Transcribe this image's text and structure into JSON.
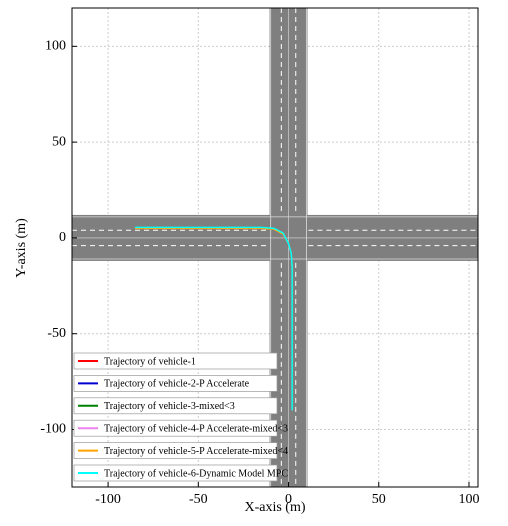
{
  "chart_data": {
    "type": "line",
    "xlabel": "X-axis (m)",
    "ylabel": "Y-axis (m)",
    "xlim": [
      -120,
      105
    ],
    "ylim": [
      -130,
      120
    ],
    "xticks": [
      -100,
      -50,
      0,
      50,
      100
    ],
    "yticks": [
      -100,
      -50,
      0,
      50,
      100
    ],
    "grid": true,
    "legend": "lower left",
    "series": [
      {
        "name": "Trajectory of vehicle-1",
        "color": "#ff0000",
        "x": [
          -85,
          -40,
          -15,
          -8,
          -3,
          0,
          1.5,
          2,
          2,
          2
        ],
        "values": [
          5,
          5,
          5,
          4.5,
          2,
          -3,
          -8,
          -15,
          -50,
          -90
        ]
      },
      {
        "name": "Trajectory of vehicle-2-P Accelerate",
        "color": "#0000cc",
        "x": [
          -85,
          -40,
          -15,
          -8,
          -3,
          0,
          1.5,
          2,
          2,
          2
        ],
        "values": [
          5,
          5,
          5,
          4.5,
          2,
          -3,
          -8,
          -15,
          -50,
          -90
        ]
      },
      {
        "name": "Trajectory of vehicle-3-mixed<3",
        "color": "#008000",
        "x": [
          -85,
          -40,
          -15,
          -8,
          -3,
          0,
          1.5,
          2,
          2,
          2
        ],
        "values": [
          5,
          5,
          5,
          4.5,
          2,
          -3,
          -8,
          -15,
          -50,
          -90
        ]
      },
      {
        "name": "Trajectory of vehicle-4-P Accelerate-mixed<3",
        "color": "#ee82ee",
        "x": [
          -85,
          -40,
          -15,
          -8,
          -3,
          0,
          1.5,
          2,
          2,
          2
        ],
        "values": [
          5,
          5,
          5,
          4.5,
          2,
          -3,
          -8,
          -15,
          -50,
          -90
        ]
      },
      {
        "name": "Trajectory of vehicle-5-P Accelerate-mixed<4",
        "color": "#ffa500",
        "x": [
          -85,
          -40,
          -15,
          -8,
          -3,
          0,
          1.5,
          2,
          2,
          2
        ],
        "values": [
          5,
          5,
          5,
          4.5,
          2,
          -3,
          -8,
          -15,
          -50,
          -90
        ]
      },
      {
        "name": "Trajectory of vehicle-6-Dynamic Model MPC",
        "color": "#00ffff",
        "x": [
          -85,
          -40,
          -15,
          -8,
          -3,
          0,
          1.5,
          2,
          2,
          2
        ],
        "values": [
          5.5,
          5.5,
          5.5,
          5,
          2.5,
          -3,
          -8,
          -15,
          -50,
          -90
        ]
      }
    ]
  }
}
